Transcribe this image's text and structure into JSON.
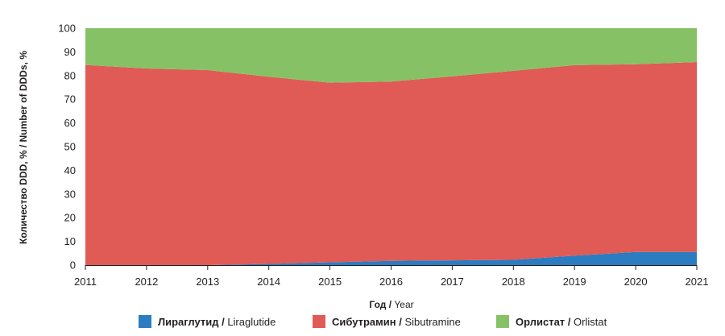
{
  "chart_data": {
    "type": "area",
    "stacked": true,
    "x": [
      2011,
      2012,
      2013,
      2014,
      2015,
      2016,
      2017,
      2018,
      2019,
      2020,
      2021
    ],
    "ylim": [
      0,
      100
    ],
    "yticks": [
      0,
      10,
      20,
      30,
      40,
      50,
      60,
      70,
      80,
      90,
      100
    ],
    "ylabel": "Количество DDD, % / Number of DDDs, %",
    "xlabel_ru": "Год",
    "xlabel_en": "Year",
    "grid": false,
    "legend_position": "bottom",
    "series": [
      {
        "name_ru": "Лираглутид",
        "name_en": "Liraglutide",
        "color": "#2b7cc1",
        "values": [
          0,
          0,
          0,
          0.5,
          1.2,
          1.8,
          2.0,
          2.2,
          4.0,
          5.5,
          5.5
        ]
      },
      {
        "name_ru": "Сибутрамин",
        "name_en": "Sibutramine",
        "color": "#e05a56",
        "values": [
          84.5,
          83.0,
          82.3,
          79.0,
          75.8,
          75.7,
          77.7,
          79.8,
          80.4,
          79.3,
          80.2
        ]
      },
      {
        "name_ru": "Орлистат",
        "name_en": "Orlistat",
        "color": "#86c265",
        "values": [
          15.5,
          17.0,
          17.7,
          20.5,
          23.0,
          22.5,
          20.3,
          18.0,
          15.6,
          15.2,
          14.3
        ]
      }
    ]
  }
}
